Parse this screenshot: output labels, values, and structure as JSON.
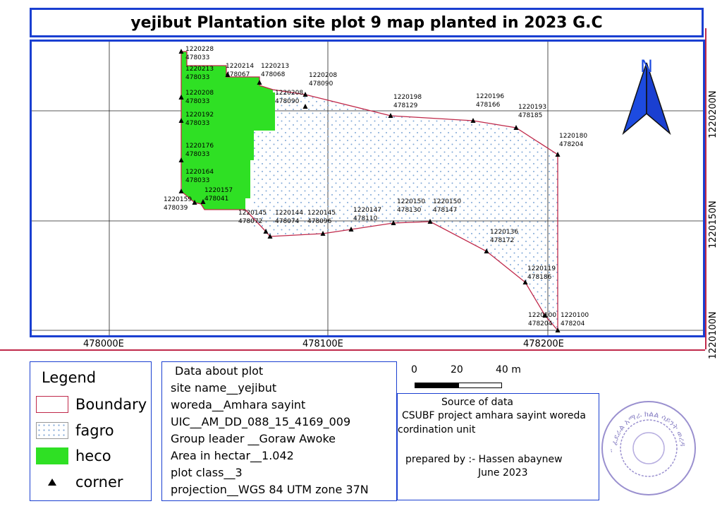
{
  "title": "yejibut Plantation site plot 9 map planted in 2023 G.C",
  "map": {
    "x_ticks": [
      "478000E",
      "478100E",
      "478200E"
    ],
    "y_ticks": [
      "1220200N",
      "1220150N",
      "1220100N"
    ],
    "north_label": "N",
    "colors": {
      "boundary": "#c0294a",
      "heco": "#2fe024",
      "fagro_dot": "#7fa6d6",
      "frame": "#1a3fd1",
      "north_arrow": "#1d4be0"
    },
    "points": [
      {
        "n": "1220228",
        "e": "478033"
      },
      {
        "n": "1220213",
        "e": "478033"
      },
      {
        "n": "1220214",
        "e": "478067"
      },
      {
        "n": "1220213",
        "e": "478068"
      },
      {
        "n": "1220208",
        "e": "478090"
      },
      {
        "n": "1220208",
        "e": "478090"
      },
      {
        "n": "1220208",
        "e": "478033"
      },
      {
        "n": "1220198",
        "e": "478129"
      },
      {
        "n": "1220196",
        "e": "478166"
      },
      {
        "n": "1220193",
        "e": "478185"
      },
      {
        "n": "1220192",
        "e": "478033"
      },
      {
        "n": "1220180",
        "e": "478204"
      },
      {
        "n": "1220176",
        "e": "478033"
      },
      {
        "n": "1220164",
        "e": "478033"
      },
      {
        "n": "1220157",
        "e": "478041"
      },
      {
        "n": "1220159",
        "e": "478039"
      },
      {
        "n": "1220145",
        "e": "478072"
      },
      {
        "n": "1220144",
        "e": "478074"
      },
      {
        "n": "1220145",
        "e": "478096"
      },
      {
        "n": "1220147",
        "e": "478110"
      },
      {
        "n": "1220150",
        "e": "478130"
      },
      {
        "n": "1220150",
        "e": "478147"
      },
      {
        "n": "1220136",
        "e": "478172"
      },
      {
        "n": "1220119",
        "e": "478186"
      },
      {
        "n": "1220100",
        "e": "478204"
      },
      {
        "n": "1220100",
        "e": "478204"
      }
    ]
  },
  "legend": {
    "title": "Legend",
    "items": [
      {
        "label": "Boundary",
        "symbol": "boundary-swatch"
      },
      {
        "label": "fagro",
        "symbol": "dotted-swatch"
      },
      {
        "label": "heco",
        "symbol": "green-swatch"
      },
      {
        "label": "corner",
        "symbol": "triangle-icon"
      }
    ]
  },
  "plot_data": {
    "heading": "Data about plot",
    "lines": [
      "site name__yejibut",
      "woreda__Amhara sayint",
      "UIC__AM_DD_088_15_4169_009",
      "Group leader __Goraw Awoke",
      "Area in hectar__1.042",
      "plot class__3",
      "projection__WGS 84 UTM zone 37N"
    ]
  },
  "scale": {
    "labels": [
      "0",
      "20",
      "40 m"
    ]
  },
  "source": {
    "heading": "Source of data",
    "line1": "CSUBF project amhara sayint woreda",
    "line2": "cordination unit",
    "prepared": "prepared by :- Hassen abaynew",
    "date": "June 2023"
  },
  "stamp": {
    "text": "ፈደራል አማራ ክልል ሳይንት ወረዳ"
  }
}
